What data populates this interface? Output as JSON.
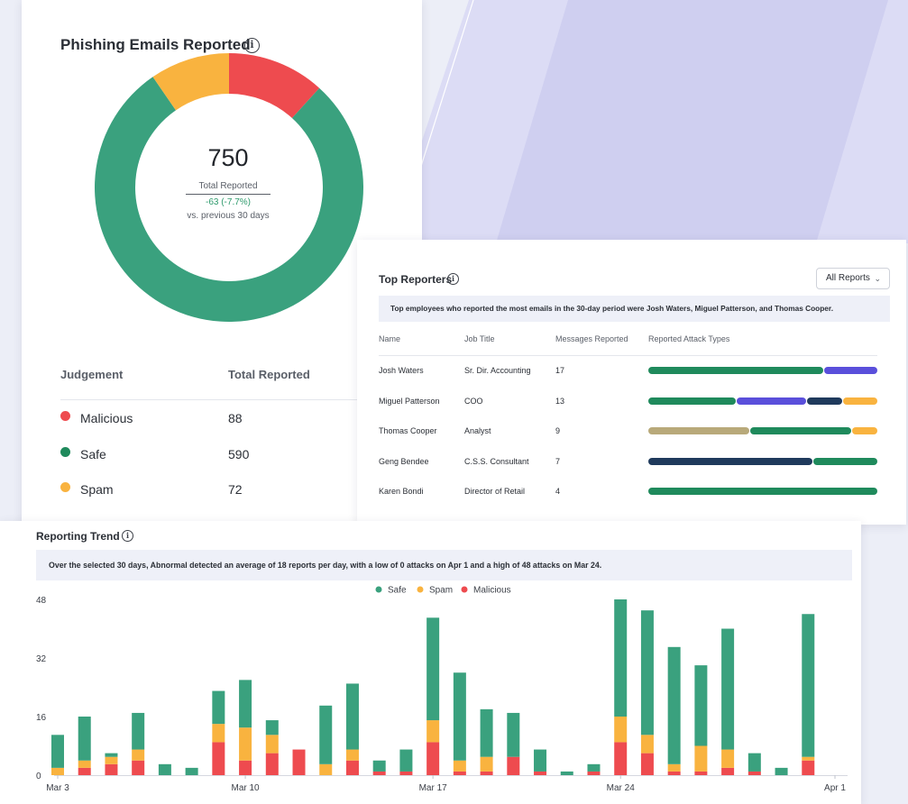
{
  "phishing": {
    "title": "Phishing Emails Reported",
    "total": "750",
    "total_label": "Total Reported",
    "change": "-63 (-7.7%)",
    "compare_label": "vs. previous 30 days",
    "table": {
      "headers": [
        "Judgement",
        "Total Reported"
      ],
      "rows": [
        {
          "label": "Malicious",
          "value": "88",
          "color": "#ee4b4f"
        },
        {
          "label": "Safe",
          "value": "590",
          "color": "#3aa17e"
        },
        {
          "label": "Spam",
          "value": "72",
          "color": "#f9b33f"
        }
      ]
    },
    "donut": {
      "values": [
        88,
        590,
        72
      ]
    }
  },
  "top_reporters": {
    "title": "Top Reporters",
    "dropdown_label": "All Reports",
    "summary": "Top employees who reported the most emails in the 30-day period were Josh Waters, Miguel Patterson, and Thomas Cooper.",
    "headers": [
      "Name",
      "Job Title",
      "Messages Reported",
      "Reported Attack Types"
    ],
    "rows": [
      {
        "name": "Josh Waters",
        "job": "Sr. Dir. Accounting",
        "messages": "17",
        "segments": [
          {
            "color": "#1f8a5c",
            "fraction": 0.765
          },
          {
            "color": "#5a4fdb",
            "fraction": 0.235
          }
        ]
      },
      {
        "name": "Miguel Patterson",
        "job": "COO",
        "messages": "13",
        "segments": [
          {
            "color": "#1f8a5c",
            "fraction": 0.385
          },
          {
            "color": "#5a4fdb",
            "fraction": 0.31
          },
          {
            "color": "#1f3a5c",
            "fraction": 0.155
          },
          {
            "color": "#f9b33f",
            "fraction": 0.15
          }
        ]
      },
      {
        "name": "Thomas Cooper",
        "job": "Analyst",
        "messages": "9",
        "segments": [
          {
            "color": "#b8a97a",
            "fraction": 0.445
          },
          {
            "color": "#1f8a5c",
            "fraction": 0.445
          },
          {
            "color": "#f9b33f",
            "fraction": 0.11
          }
        ]
      },
      {
        "name": "Geng Bendee",
        "job": "C.S.S. Consultant",
        "messages": "7",
        "segments": [
          {
            "color": "#1f3a5c",
            "fraction": 0.72
          },
          {
            "color": "#1f8a5c",
            "fraction": 0.28
          }
        ]
      },
      {
        "name": "Karen Bondi",
        "job": "Director of Retail",
        "messages": "4",
        "segments": [
          {
            "color": "#1f8a5c",
            "fraction": 1.0
          }
        ]
      }
    ]
  },
  "trend": {
    "title": "Reporting Trend",
    "summary": "Over the selected 30 days, Abnormal detected an average of 18 reports per day, with a low of 0 attacks on Apr 1 and a high of 48 attacks on Mar 24."
  },
  "chart_data": {
    "type": "bar",
    "stacked": true,
    "categories": [
      "Mar 3",
      "Mar 4",
      "Mar 5",
      "Mar 6",
      "Mar 7",
      "Mar 8",
      "Mar 9",
      "Mar 10",
      "Mar 11",
      "Mar 12",
      "Mar 13",
      "Mar 14",
      "Mar 15",
      "Mar 16",
      "Mar 17",
      "Mar 18",
      "Mar 19",
      "Mar 20",
      "Mar 21",
      "Mar 22",
      "Mar 23",
      "Mar 24",
      "Mar 25",
      "Mar 26",
      "Mar 27",
      "Mar 28",
      "Mar 29",
      "Mar 30",
      "Mar 31",
      "Apr 1"
    ],
    "series": [
      {
        "name": "Malicious",
        "color": "#ee4b4f",
        "values": [
          0,
          2,
          3,
          4,
          0,
          0,
          9,
          4,
          6,
          7,
          0,
          4,
          1,
          1,
          9,
          1,
          1,
          5,
          1,
          0,
          1,
          9,
          6,
          1,
          1,
          2,
          1,
          0,
          4,
          0
        ]
      },
      {
        "name": "Spam",
        "color": "#f9b33f",
        "values": [
          2,
          2,
          2,
          3,
          0,
          0,
          5,
          9,
          5,
          0,
          3,
          3,
          0,
          0,
          6,
          3,
          4,
          0,
          0,
          0,
          0,
          7,
          5,
          2,
          7,
          5,
          0,
          0,
          1,
          0
        ]
      },
      {
        "name": "Safe",
        "color": "#3aa17e",
        "values": [
          9,
          12,
          1,
          10,
          3,
          2,
          9,
          13,
          4,
          0,
          16,
          18,
          3,
          6,
          28,
          24,
          13,
          12,
          6,
          1,
          2,
          32,
          34,
          32,
          22,
          33,
          5,
          2,
          39,
          0
        ]
      }
    ],
    "x_tick_labels": [
      "Mar 3",
      "Mar 10",
      "Mar 17",
      "Mar 24",
      "Apr 1"
    ],
    "y_ticks": [
      0,
      16,
      32,
      48
    ],
    "ylim": [
      0,
      48
    ],
    "legend": [
      "Safe",
      "Spam",
      "Malicious"
    ],
    "legend_position": "top-center",
    "grid": false
  }
}
